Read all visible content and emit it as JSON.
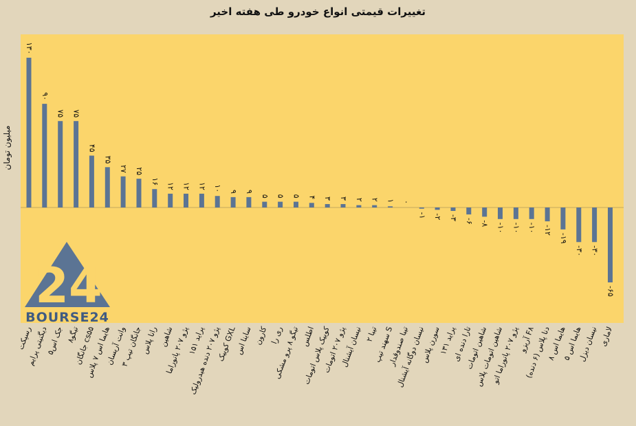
{
  "chart_data": {
    "type": "bar",
    "title": "تغییرات قیمتی انواع خودرو طی هفته اخیر",
    "ylabel": "میلیون تومان",
    "xlabel": "",
    "ylim": [
      -70,
      135
    ],
    "grid": false,
    "categories": [
      "رسپکت",
      "دیگنیتی پرایم",
      "جک اس۵",
      "تیگو۸",
      "جانگان cs۵۵",
      "هایما اس ۷ پلاس",
      "وانت آریسان",
      "جانگان تیپ ۳",
      "رانا پلاس",
      "شاهین",
      "پژو ۲۰۷ پانوراما",
      "پراید ۱۵۱",
      "پژو ۲۰۷ دنده هیدرولیک",
      "کوییک GXL",
      "ساینا اس",
      "کارون",
      "ری را",
      "تیگو ۸ پرو مشکی",
      "اطلس",
      "کوییک پلاس اتومات",
      "پژو ۲۰۷ اتومات",
      "نیسان آیشنال",
      "تیبا ۲",
      "سهند تیپ S",
      "تیبا صندوقدار",
      "نیسان دوگانه آیشنال",
      "سورن پلاس",
      "پراید ۱۳۱",
      "تارا دنده ای",
      "شاهین اتومات",
      "شاهین اتومات پلاس",
      "پژو ۲۰۷ پانوراما اتو",
      "آریزو F۸",
      "دنا پلاس (۶ دنده)",
      "هایما اس ۸",
      "هایما اس ۵",
      "نیسان دیزل",
      "لاماری"
    ],
    "values": [
      130,
      90,
      75,
      75,
      45,
      35,
      27,
      25,
      16,
      12,
      12,
      12,
      10,
      9,
      9,
      5,
      5,
      5,
      4,
      3,
      3,
      2,
      2,
      1,
      0,
      -1,
      -2,
      -3,
      -6,
      -8,
      -10,
      -10,
      -10,
      -12,
      -19,
      -30,
      -30,
      -65
    ],
    "value_labels": [
      "۱۳۰",
      "۹۰",
      "۷۵",
      "۷۵",
      "۴۵",
      "۳۵",
      "۲۷",
      "۲۵",
      "۱۶",
      "۱۲",
      "۱۲",
      "۱۲",
      "۱۰",
      "۹",
      "۹",
      "۵",
      "۵",
      "۵",
      "۴",
      "۳",
      "۳",
      "۲",
      "۲",
      "۱",
      "۰",
      "-۱",
      "-۲",
      "-۳",
      "-۶",
      "-۸",
      "-۱۰",
      "-۱۰",
      "-۱۰",
      "-۱۲",
      "-۱۹",
      "-۳۰",
      "-۳۰",
      "-۶۵"
    ],
    "colors": {
      "bar": "#5b7494",
      "plot_bg": "#fbd56b",
      "page_bg": "#e2d6bb"
    }
  },
  "logo": {
    "mark": "24",
    "text": "BOURSE24"
  }
}
